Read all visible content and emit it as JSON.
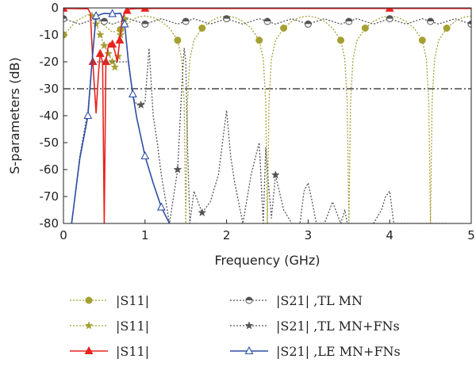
{
  "chart_data": {
    "type": "line",
    "title": "",
    "xlabel": "Frequency (GHz)",
    "ylabel": "S-parameters (dB)",
    "xlim": [
      0,
      5
    ],
    "ylim": [
      -80,
      0
    ],
    "xticks": [
      "0",
      "1",
      "2",
      "3",
      "4",
      "5"
    ],
    "yticks": [
      "0",
      "-10",
      "-20",
      "-30",
      "-40",
      "-50",
      "-60",
      "-70",
      "-80"
    ],
    "reference_line": {
      "y": -30,
      "style": "dash-dot",
      "color": "#222222"
    },
    "legend_placement": "below-plot",
    "series": [
      {
        "name": "|S11|",
        "color": "#a5a033",
        "dash": "dotted",
        "marker": "circle",
        "x": [
          0.0,
          0.05,
          0.15,
          0.3,
          0.4,
          0.5,
          0.6,
          0.7,
          0.8,
          0.9,
          1.0,
          1.1,
          1.2,
          1.3,
          1.4,
          1.45,
          1.48,
          1.5,
          1.52,
          1.55,
          1.6,
          1.7,
          1.8,
          1.9,
          2.0,
          2.1,
          2.2,
          2.3,
          2.4,
          2.45,
          2.48,
          2.5,
          2.52,
          2.55,
          2.6,
          2.7,
          2.8,
          2.9,
          3.0,
          3.1,
          3.2,
          3.3,
          3.4,
          3.45,
          3.48,
          3.5,
          3.52,
          3.55,
          3.6,
          3.7,
          3.8,
          3.9,
          4.0,
          4.1,
          4.2,
          4.3,
          4.4,
          4.45,
          4.48,
          4.5,
          4.52,
          4.55,
          4.6,
          4.7,
          4.8,
          4.9,
          5.0
        ],
        "y": [
          -10,
          -8.5,
          -5,
          -2.5,
          -4,
          -6.5,
          -9,
          -8,
          -5.5,
          -3.5,
          -3,
          -3.5,
          -5,
          -7.5,
          -12,
          -19,
          -35,
          -80,
          -35,
          -19,
          -12,
          -7.5,
          -5,
          -3.5,
          -3,
          -3.5,
          -5,
          -7.5,
          -12,
          -19,
          -35,
          -80,
          -35,
          -19,
          -12,
          -7.5,
          -5,
          -3.5,
          -3,
          -3.5,
          -5,
          -7.5,
          -12,
          -19,
          -35,
          -80,
          -35,
          -19,
          -12,
          -7.5,
          -5,
          -3.5,
          -3,
          -3.5,
          -5,
          -7.5,
          -12,
          -19,
          -35,
          -80,
          -35,
          -19,
          -12,
          -7.5,
          -5,
          -3.5,
          -3
        ]
      },
      {
        "name": "|S11|",
        "color": "#a5a033",
        "dash": "dotted",
        "marker": "star",
        "x": [
          0.35,
          0.4,
          0.45,
          0.5,
          0.55,
          0.6,
          0.63,
          0.67,
          0.7,
          0.75
        ],
        "y": [
          -3,
          -6,
          -10,
          -14,
          -17,
          -20,
          -22,
          -18,
          -10,
          -4
        ]
      },
      {
        "name": "|S11|",
        "color": "#e8231f",
        "dash": "solid",
        "marker": "triangle",
        "x": [
          0.0,
          0.3,
          0.33,
          0.36,
          0.4,
          0.43,
          0.45,
          0.48,
          0.5,
          0.52,
          0.55,
          0.57,
          0.6,
          0.63,
          0.66,
          0.69,
          0.72,
          0.75,
          0.78,
          0.8,
          0.85,
          1.0,
          2.0,
          3.0,
          4.0,
          5.0
        ],
        "y": [
          -0.2,
          -0.3,
          -2,
          -20,
          -39,
          -24,
          -17,
          -20,
          -80,
          -20,
          -14,
          -13,
          -13.5,
          -16,
          -20,
          -12,
          -4,
          -2,
          -1,
          -0.5,
          -0.3,
          -0.2,
          -0.2,
          -0.2,
          -0.2,
          -0.2
        ]
      },
      {
        "name": "|S21| ,TL MN",
        "color": "#555555",
        "dash": "dotted",
        "marker": "half-circle",
        "x": [
          0.0,
          0.1,
          0.2,
          0.3,
          0.4,
          0.5,
          0.6,
          0.7,
          0.8,
          0.9,
          1.0,
          1.1,
          1.2,
          1.3,
          1.4,
          1.5,
          1.6,
          1.7,
          1.8,
          1.9,
          2.0,
          2.1,
          2.2,
          2.3,
          2.4,
          2.5,
          2.6,
          2.7,
          2.8,
          2.9,
          3.0,
          3.1,
          3.2,
          3.3,
          3.4,
          3.5,
          3.6,
          3.7,
          3.8,
          3.9,
          4.0,
          4.1,
          4.2,
          4.3,
          4.4,
          4.5,
          4.6,
          4.7,
          4.8,
          4.9,
          5.0
        ],
        "y": [
          -4,
          -5,
          -6,
          -5,
          -4,
          -5,
          -6,
          -5,
          -4,
          -5,
          -6,
          -5,
          -4,
          -5,
          -6,
          -5,
          -4,
          -5,
          -6,
          -5,
          -4,
          -5,
          -6,
          -5,
          -4,
          -5,
          -6,
          -5,
          -4,
          -5,
          -6,
          -5,
          -4,
          -5,
          -6,
          -5,
          -4,
          -5,
          -6,
          -5,
          -4,
          -5,
          -6,
          -5,
          -4,
          -5,
          -6,
          -5,
          -4,
          -5,
          -6
        ]
      },
      {
        "name": "|S21| ,TL MN+FNs",
        "color": "#555555",
        "dash": "dotted",
        "marker": "star",
        "x": [
          0.1,
          0.2,
          0.3,
          0.35,
          0.8,
          0.85,
          0.9,
          0.95,
          1.0,
          1.05,
          1.1,
          1.15,
          1.2,
          1.3,
          1.4,
          1.45,
          1.48,
          1.5,
          1.52,
          1.55,
          1.6,
          1.7,
          1.8,
          1.9,
          1.95,
          2.0,
          2.05,
          2.1,
          2.2,
          2.3,
          2.4,
          2.45,
          2.48,
          2.5,
          2.55,
          2.6,
          2.7,
          2.8,
          2.9,
          2.95,
          3.0,
          3.05,
          3.1,
          3.2,
          3.3,
          3.4,
          3.45,
          3.48,
          3.5,
          3.55,
          3.6,
          3.7,
          3.8,
          3.9,
          3.95,
          4.0,
          4.05,
          4.1,
          4.2,
          4.3,
          4.4,
          4.45,
          4.48,
          4.5,
          4.55,
          4.6,
          4.7
        ],
        "y": [
          -80,
          -55,
          -38,
          -20,
          -20,
          -33,
          -36,
          -36,
          -35,
          -15,
          -40,
          -50,
          -62,
          -80,
          -60,
          -30,
          -15,
          -20,
          -50,
          -80,
          -68,
          -76,
          -72,
          -62,
          -50,
          -38,
          -55,
          -65,
          -80,
          -62,
          -50,
          -80,
          -52,
          -60,
          -78,
          -62,
          -75,
          -80,
          -80,
          -68,
          -65,
          -72,
          -80,
          -80,
          -72,
          -80,
          -75,
          -80,
          -80,
          -80,
          -80,
          -80,
          -80,
          -75,
          -70,
          -68,
          -80,
          -80,
          -80,
          -80,
          -80,
          -80,
          -80,
          -80,
          -80,
          -80,
          -80
        ]
      },
      {
        "name": "|S21| ,LE MN+FNs",
        "color": "#2e4ea6",
        "dash": "solid",
        "marker": "triangle-open",
        "x": [
          0.1,
          0.2,
          0.3,
          0.35,
          0.4,
          0.5,
          0.6,
          0.7,
          0.75,
          0.8,
          0.85,
          0.9,
          1.0,
          1.1,
          1.2,
          1.3
        ],
        "y": [
          -80,
          -56,
          -40,
          -20,
          -3,
          -2,
          -2.2,
          -2,
          -6,
          -21,
          -32,
          -41,
          -55,
          -65,
          -74,
          -80
        ]
      }
    ]
  }
}
